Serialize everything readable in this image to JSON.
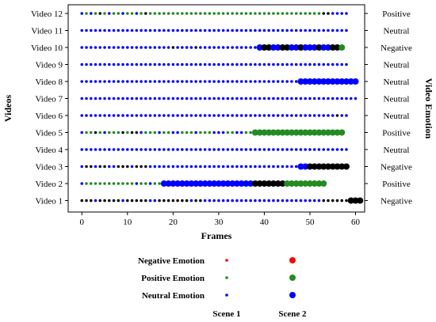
{
  "chart_data": {
    "type": "scatter",
    "xlabel": "Frames",
    "ylabel": "Videos",
    "y2label": "Video Emotion",
    "xlim": [
      -3,
      62
    ],
    "xticks": [
      0,
      10,
      20,
      30,
      40,
      50,
      60
    ],
    "colors": {
      "negative": "#ff0000",
      "positive": "#228b22",
      "neutral": "#0000ff"
    },
    "legend": {
      "rows": [
        {
          "key": "negative",
          "label": "Negative Emotion"
        },
        {
          "key": "positive",
          "label": "Positive Emotion"
        },
        {
          "key": "neutral",
          "label": "Neutral Emotion"
        }
      ],
      "columns": [
        "Scene 1",
        "Scene 2"
      ]
    },
    "code_key": {
      "N": "negative",
      "P": "positive",
      "U": "neutral"
    },
    "videos": [
      {
        "name": "Video 12",
        "emotion": "Positive",
        "scene1": "UPUPRPUPPUPPUPRPPPPPPPPPPPPPPPPPPPPPPPPPPPPPPPPPPPPPPRRUUUU",
        "scene2": "",
        "scene2_start": 0
      },
      {
        "name": "Video 11",
        "emotion": "Neutral",
        "scene1": "UUUUUUUUUUUUUUUUUUUUUUUUUUUUUUUUUUUUUUUUUUUUUUUUUUUUUUUUUUU",
        "scene2": "",
        "scene2_start": 0
      },
      {
        "name": "Video 10",
        "emotion": "Negative",
        "scene1": "UUUUUUUUUUUUUUUUUUUURUUUURUUUUUUUUUUUUU",
        "scene2": "URRUURRUURUUURUURRP",
        "scene2_start": 39
      },
      {
        "name": "Video 9",
        "emotion": "Neutral",
        "scene1": "UUUUUUUUUUUUUUUUUUUUUUUUUUUUUUUUUUUUUUUUUUUUUUUUUUUUUUUUUUU",
        "scene2": "",
        "scene2_start": 0
      },
      {
        "name": "Video 8",
        "emotion": "Neutral",
        "scene1": "UUUUUUUUUUUUUUUUUUUUUUUUUUUUUUUUUUUUUUUUUUUUUUUUUU",
        "scene2": "UUUUUUUUUUUUU",
        "scene2_start": 48
      },
      {
        "name": "Video 7",
        "emotion": "Neutral",
        "scene1": "UUUUUUUUUUUUUUUUUUUUUUUUUUUUUUUUUUUUUUUUUUUUUUUUUUUUUUUUUUUUU",
        "scene2": "",
        "scene2_start": 0
      },
      {
        "name": "Video 6",
        "emotion": "Neutral",
        "scene1": "UUUUUUUUUUUUUUUUUUUUUUUUUUUUUUUUUUUUUUUUUUUUUUUUUUUUUUUURUU",
        "scene2": "",
        "scene2_start": 0
      },
      {
        "name": "Video 5",
        "emotion": "Positive",
        "scene1": "UPPRPUPPPRPRRUPPPUPPUUPPPUPPPUUUPPUUPPUPU",
        "scene2": "PPPPPPPPPPPPPPPPPPPP",
        "scene2_start": 38
      },
      {
        "name": "Video 4",
        "emotion": "Neutral",
        "scene1": "UUUUUUUUUUUUUUUUUUUUUUUUUUUUUUUUUUUUUUUUUUUUUUUUUUUUUUUUUUU",
        "scene2": "",
        "scene2_start": 0
      },
      {
        "name": "Video 3",
        "emotion": "Negative",
        "scene1": "URRURRUURRRURRRUUUUUUUUUUUUUUUUUUUUUUUUUUUUUUUUUUU",
        "scene2": "UURRRRRRRRR",
        "scene2_start": 48
      },
      {
        "name": "Video 2",
        "emotion": "Positive",
        "scene1": "UPPPPPPPPPPPUPPUPPPP",
        "scene2": "UUUUUUUUUUUUUUUUUUUURRRRRRRPPPPPPPPP",
        "scene2_start": 18
      },
      {
        "name": "Video 1",
        "emotion": "Negative",
        "scene1": "RRRURRRRRURRRRRUURRRRRRRURRUUUUUUUUUUUUUUUUUUUUUUUUUURRRRRR",
        "scene2": "RRR",
        "scene2_start": 59
      }
    ]
  }
}
